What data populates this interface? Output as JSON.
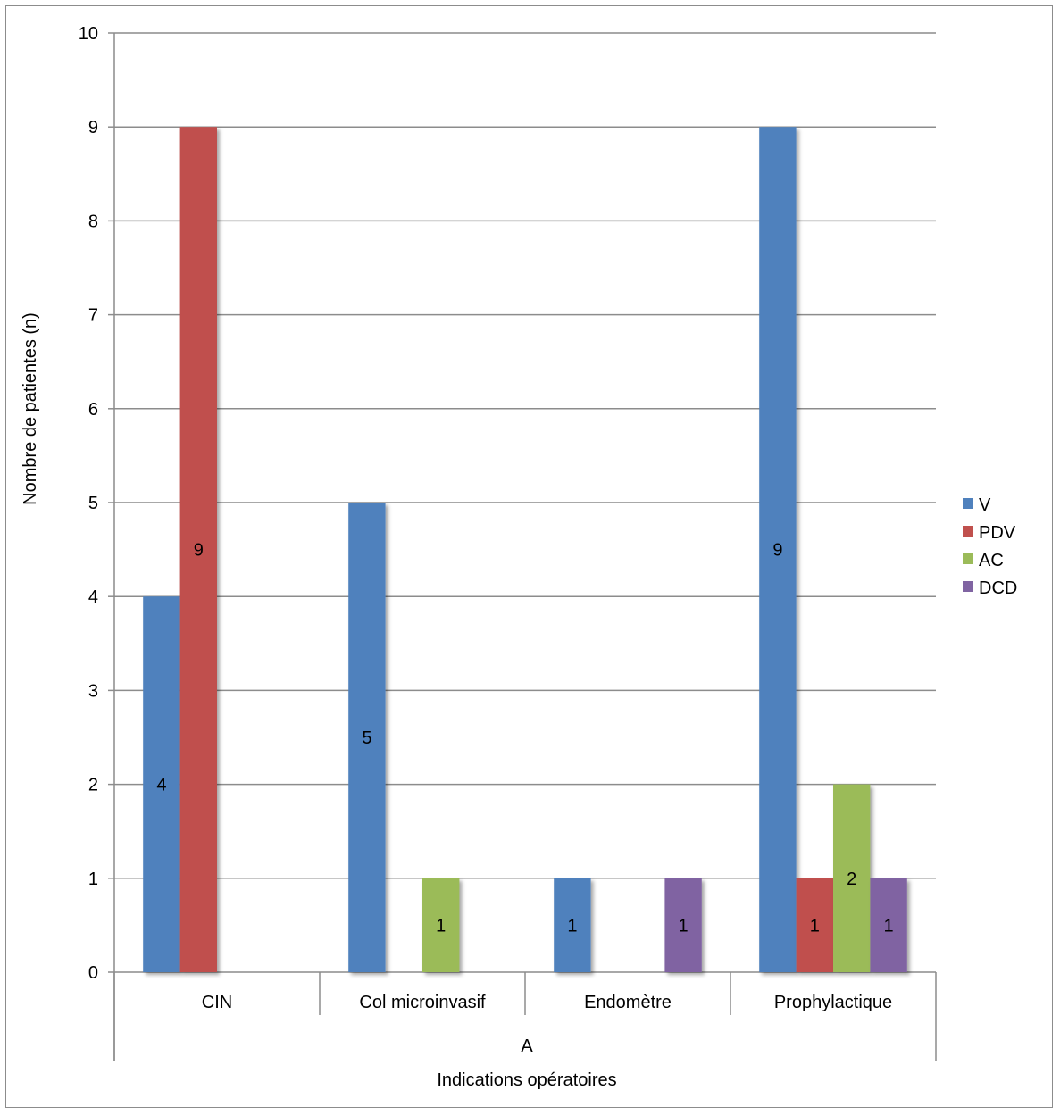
{
  "chart_data": {
    "type": "bar",
    "categories": [
      "CIN",
      "Col microinvasif",
      "Endomètre",
      "Prophylactique"
    ],
    "group_label": "A",
    "xlabel": "Indications opératoires",
    "ylabel": "Nombre de patientes (n)",
    "ylim": [
      0,
      10
    ],
    "yticks": [
      "0",
      "1",
      "2",
      "3",
      "4",
      "5",
      "6",
      "7",
      "8",
      "9",
      "10"
    ],
    "grid": true,
    "legend_position": "right",
    "series": [
      {
        "name": "V",
        "color": "#4F81BD",
        "values": [
          4,
          5,
          1,
          9
        ],
        "labels": [
          "4",
          "5",
          "1",
          "9"
        ]
      },
      {
        "name": "PDV",
        "color": "#C0504D",
        "values": [
          9,
          null,
          null,
          1
        ],
        "labels": [
          "9",
          "",
          "",
          "1"
        ]
      },
      {
        "name": "AC",
        "color": "#9BBB59",
        "values": [
          null,
          1,
          null,
          2
        ],
        "labels": [
          "",
          "1",
          "",
          "2"
        ]
      },
      {
        "name": "DCD",
        "color": "#8064A2",
        "values": [
          null,
          null,
          1,
          1
        ],
        "labels": [
          "",
          "",
          "1",
          "1"
        ]
      }
    ]
  }
}
